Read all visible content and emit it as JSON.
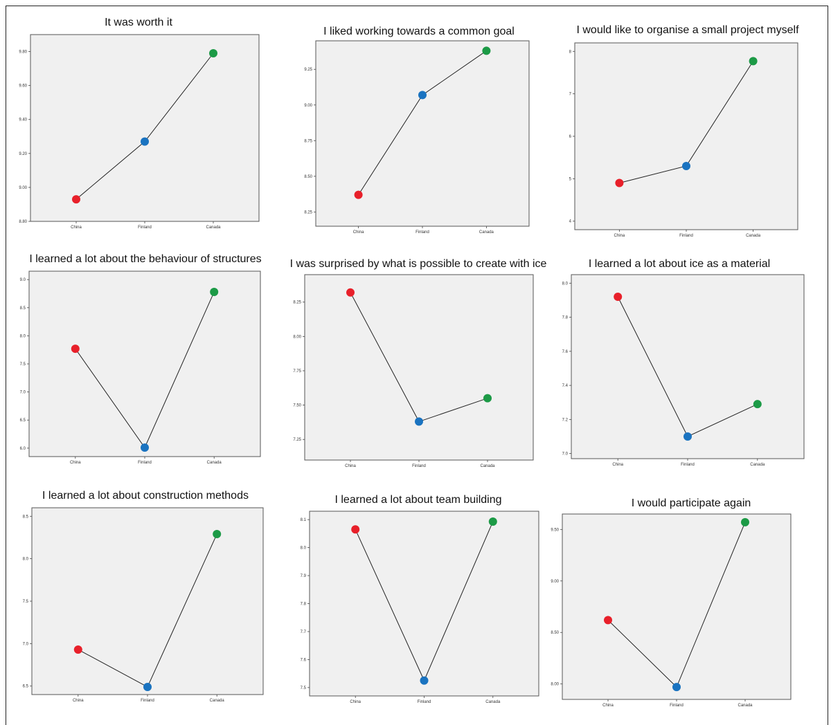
{
  "colors": {
    "China": "#e8202a",
    "Finland": "#1a73c0",
    "Canada": "#1c9a46",
    "plot_bg": "#f0f0f0",
    "line": "#222222"
  },
  "chart_data": [
    {
      "type": "line",
      "title": "It was worth it",
      "categories": [
        "China",
        "Finland",
        "Canada"
      ],
      "values": [
        8.93,
        9.27,
        9.79
      ],
      "ylim": [
        8.8,
        9.9
      ],
      "yticks": [
        8.8,
        9.0,
        9.2,
        9.4,
        9.6,
        9.8
      ],
      "ytick_labels": [
        "8.80",
        "9.00",
        "9.20",
        "9.40",
        "9.60",
        "9.80"
      ],
      "xlabel": "",
      "ylabel": "",
      "grid": false
    },
    {
      "type": "line",
      "title": "I liked working towards a common goal",
      "categories": [
        "China",
        "Finland",
        "Canada"
      ],
      "values": [
        8.37,
        9.07,
        9.38
      ],
      "ylim": [
        8.15,
        9.45
      ],
      "yticks": [
        8.25,
        8.5,
        8.75,
        9.0,
        9.25
      ],
      "ytick_labels": [
        "8.25",
        "8.50",
        "8.75",
        "9.00",
        "9.25"
      ],
      "xlabel": "",
      "ylabel": "",
      "grid": false
    },
    {
      "type": "line",
      "title": "I would like to organise a small project myself",
      "categories": [
        "China",
        "Finland",
        "Canada"
      ],
      "values": [
        4.9,
        5.3,
        7.77
      ],
      "ylim": [
        3.8,
        8.2
      ],
      "yticks": [
        4,
        5,
        6,
        7,
        8
      ],
      "ytick_labels": [
        "4",
        "5",
        "6",
        "7",
        "8"
      ],
      "xlabel": "",
      "ylabel": "",
      "grid": false
    },
    {
      "type": "line",
      "title": "I learned a lot about the behaviour of structures",
      "categories": [
        "China",
        "Finland",
        "Canada"
      ],
      "values": [
        7.77,
        6.01,
        8.78
      ],
      "ylim": [
        5.85,
        9.15
      ],
      "yticks": [
        6.0,
        6.5,
        7.0,
        7.5,
        8.0,
        8.5,
        9.0
      ],
      "ytick_labels": [
        "6.0",
        "6.5",
        "7.0",
        "7.5",
        "8.0",
        "8.5",
        "9.0"
      ],
      "xlabel": "",
      "ylabel": "",
      "grid": false
    },
    {
      "type": "line",
      "title": "I was surprised by what is possible to create with ice",
      "categories": [
        "China",
        "Finland",
        "Canada"
      ],
      "values": [
        8.32,
        7.38,
        7.55
      ],
      "ylim": [
        7.1,
        8.45
      ],
      "yticks": [
        7.25,
        7.5,
        7.75,
        8.0,
        8.25
      ],
      "ytick_labels": [
        "7.25",
        "7.50",
        "7.75",
        "8.00",
        "8.25"
      ],
      "xlabel": "",
      "ylabel": "",
      "grid": false
    },
    {
      "type": "line",
      "title": "I learned a lot about ice as a material",
      "categories": [
        "China",
        "Finland",
        "Canada"
      ],
      "values": [
        7.92,
        7.1,
        7.29
      ],
      "ylim": [
        6.97,
        8.05
      ],
      "yticks": [
        7.0,
        7.2,
        7.4,
        7.6,
        7.8,
        8.0
      ],
      "ytick_labels": [
        "7.0",
        "7.2",
        "7.4",
        "7.6",
        "7.8",
        "8.0"
      ],
      "xlabel": "",
      "ylabel": "",
      "grid": false
    },
    {
      "type": "line",
      "title": "I learned a lot about construction methods",
      "categories": [
        "China",
        "Finland",
        "Canada"
      ],
      "values": [
        6.93,
        6.49,
        8.29
      ],
      "ylim": [
        6.4,
        8.6
      ],
      "yticks": [
        6.5,
        7.0,
        7.5,
        8.0,
        8.5
      ],
      "ytick_labels": [
        "6.5",
        "7.0",
        "7.5",
        "8.0",
        "8.5"
      ],
      "xlabel": "",
      "ylabel": "",
      "grid": false
    },
    {
      "type": "line",
      "title": "I learned a lot about team building",
      "categories": [
        "China",
        "Finland",
        "Canada"
      ],
      "values": [
        8.065,
        7.525,
        8.093
      ],
      "ylim": [
        7.47,
        8.13
      ],
      "yticks": [
        7.5,
        7.6,
        7.7,
        7.8,
        7.9,
        8.0,
        8.1
      ],
      "ytick_labels": [
        "7.5",
        "7.6",
        "7.7",
        "7.8",
        "7.9",
        "8.0",
        "8.1"
      ],
      "xlabel": "",
      "ylabel": "",
      "grid": false
    },
    {
      "type": "line",
      "title": "I would participate again",
      "categories": [
        "China",
        "Finland",
        "Canada"
      ],
      "values": [
        8.62,
        7.97,
        9.57
      ],
      "ylim": [
        7.85,
        9.65
      ],
      "yticks": [
        8.0,
        8.5,
        9.0,
        9.5
      ],
      "ytick_labels": [
        "8.00",
        "8.50",
        "9.00",
        "9.50"
      ],
      "xlabel": "",
      "ylabel": "",
      "grid": false
    }
  ]
}
